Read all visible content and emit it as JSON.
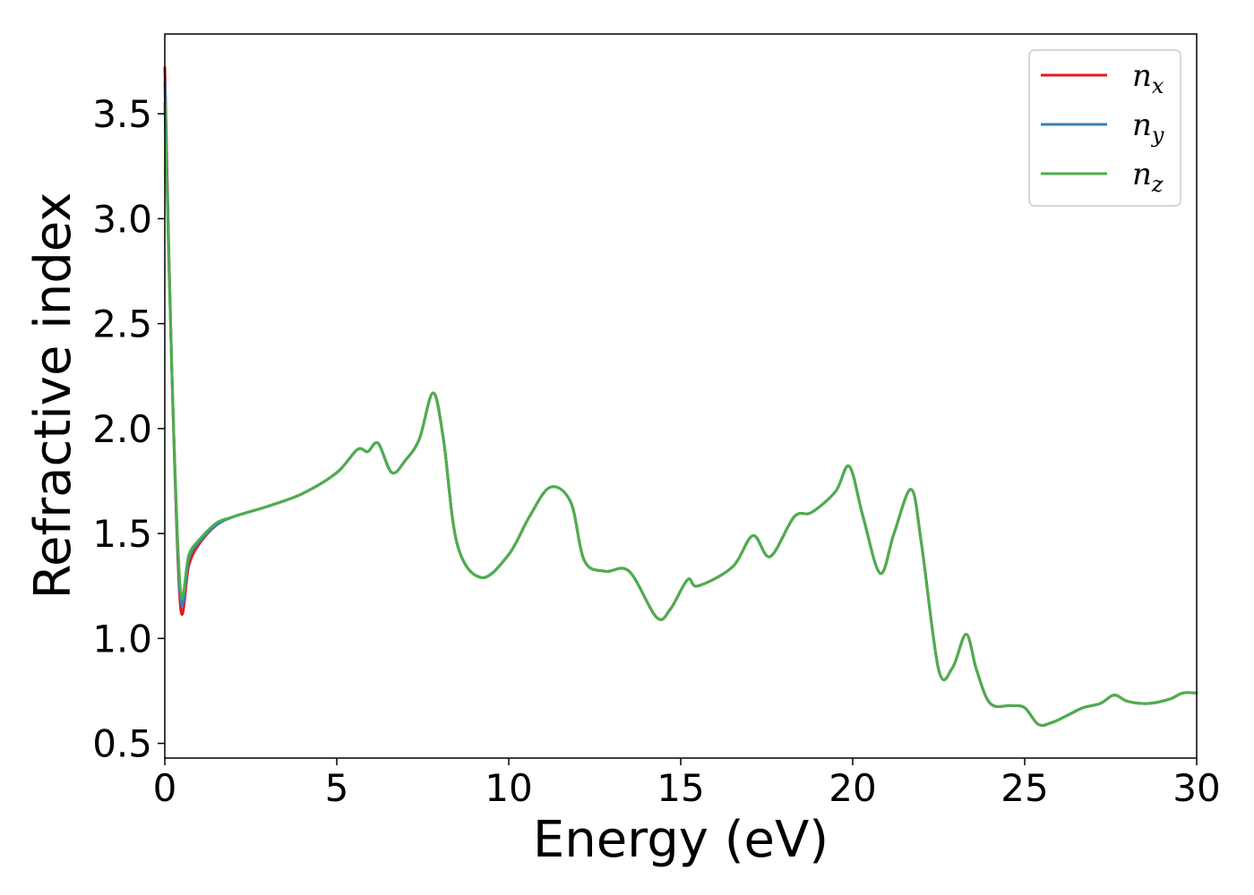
{
  "chart_data": {
    "type": "line",
    "xlabel": "Energy (eV)",
    "ylabel": "Refractive index",
    "xlim": [
      0,
      30
    ],
    "ylim": [
      0.43,
      3.88
    ],
    "xticks": [
      0,
      5,
      10,
      15,
      20,
      25,
      30
    ],
    "xtick_labels": [
      "0",
      "5",
      "10",
      "15",
      "20",
      "25",
      "30"
    ],
    "yticks": [
      0.5,
      1.0,
      1.5,
      2.0,
      2.5,
      3.0,
      3.5
    ],
    "ytick_labels": [
      "0.5",
      "1.0",
      "1.5",
      "2.0",
      "2.5",
      "3.0",
      "3.5"
    ],
    "grid": false,
    "legend_position": "top-right",
    "x": [
      0,
      0.2,
      0.45,
      0.7,
      1.0,
      1.5,
      2.0,
      3.0,
      4.0,
      5.0,
      5.6,
      5.9,
      6.2,
      6.6,
      7.0,
      7.4,
      7.8,
      8.1,
      8.5,
      9.2,
      10.0,
      10.6,
      11.2,
      11.8,
      12.2,
      12.8,
      13.5,
      14.3,
      14.7,
      15.2,
      15.5,
      16.5,
      17.1,
      17.6,
      18.3,
      18.8,
      19.5,
      19.9,
      20.3,
      20.8,
      21.2,
      21.7,
      22.0,
      22.5,
      22.9,
      23.3,
      23.6,
      24.0,
      24.6,
      25.0,
      25.4,
      25.8,
      26.2,
      26.7,
      27.2,
      27.6,
      28.0,
      28.6,
      29.2,
      29.6,
      30.0
    ],
    "series": [
      {
        "name": "n_x",
        "label_main": "n",
        "label_sub": "x",
        "color": "#e41a1c",
        "values": [
          3.72,
          2.3,
          1.16,
          1.35,
          1.45,
          1.54,
          1.58,
          1.63,
          1.69,
          1.79,
          1.9,
          1.89,
          1.93,
          1.79,
          1.85,
          1.95,
          2.17,
          1.95,
          1.45,
          1.29,
          1.4,
          1.58,
          1.72,
          1.65,
          1.37,
          1.32,
          1.32,
          1.1,
          1.14,
          1.28,
          1.25,
          1.34,
          1.49,
          1.39,
          1.58,
          1.6,
          1.7,
          1.82,
          1.58,
          1.31,
          1.5,
          1.71,
          1.45,
          0.85,
          0.86,
          1.02,
          0.85,
          0.69,
          0.68,
          0.67,
          0.59,
          0.6,
          0.63,
          0.67,
          0.69,
          0.73,
          0.7,
          0.69,
          0.71,
          0.74,
          0.74
        ]
      },
      {
        "name": "n_y",
        "label_main": "n",
        "label_sub": "y",
        "color": "#377eb8",
        "values": [
          3.65,
          2.3,
          1.2,
          1.38,
          1.46,
          1.54,
          1.58,
          1.63,
          1.69,
          1.79,
          1.9,
          1.89,
          1.93,
          1.79,
          1.85,
          1.95,
          2.17,
          1.95,
          1.45,
          1.29,
          1.4,
          1.58,
          1.72,
          1.65,
          1.37,
          1.32,
          1.32,
          1.1,
          1.14,
          1.28,
          1.25,
          1.34,
          1.49,
          1.39,
          1.58,
          1.6,
          1.7,
          1.82,
          1.58,
          1.31,
          1.5,
          1.71,
          1.45,
          0.85,
          0.86,
          1.02,
          0.85,
          0.69,
          0.68,
          0.67,
          0.59,
          0.6,
          0.63,
          0.67,
          0.69,
          0.73,
          0.7,
          0.69,
          0.71,
          0.74,
          0.74
        ]
      },
      {
        "name": "n_z",
        "label_main": "n",
        "label_sub": "z",
        "color": "#4daf4a",
        "values": [
          3.55,
          2.3,
          1.24,
          1.4,
          1.47,
          1.55,
          1.58,
          1.63,
          1.69,
          1.79,
          1.9,
          1.89,
          1.93,
          1.79,
          1.85,
          1.95,
          2.17,
          1.95,
          1.45,
          1.29,
          1.4,
          1.58,
          1.72,
          1.65,
          1.37,
          1.32,
          1.32,
          1.1,
          1.14,
          1.28,
          1.25,
          1.34,
          1.49,
          1.39,
          1.58,
          1.6,
          1.7,
          1.82,
          1.58,
          1.31,
          1.5,
          1.71,
          1.45,
          0.85,
          0.86,
          1.02,
          0.85,
          0.69,
          0.68,
          0.67,
          0.59,
          0.6,
          0.63,
          0.67,
          0.69,
          0.73,
          0.7,
          0.69,
          0.71,
          0.74,
          0.74
        ]
      }
    ]
  }
}
